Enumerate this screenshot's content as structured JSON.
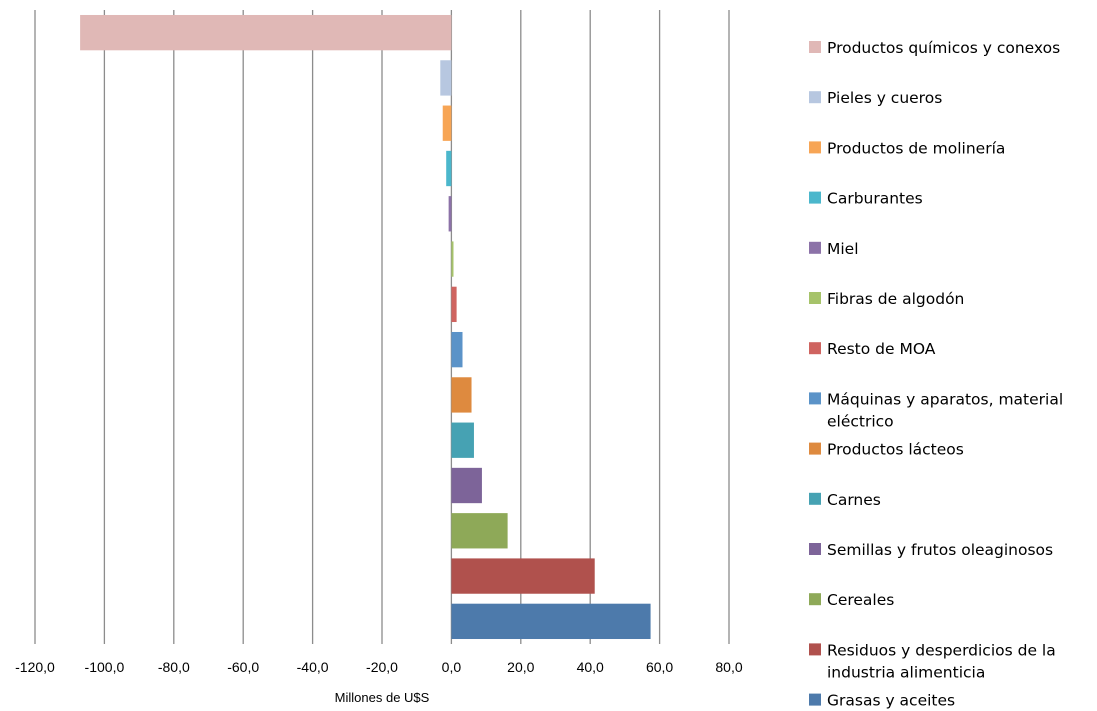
{
  "chart_data": {
    "type": "bar",
    "orientation": "horizontal",
    "xlabel": "Millones de U$S",
    "xlim": [
      -120,
      80
    ],
    "xticks": [
      -120,
      -100,
      -80,
      -60,
      -40,
      -20,
      0,
      20,
      40,
      60,
      80
    ],
    "tick_labels": [
      "-120,0",
      "-100,0",
      "-80,0",
      "-60,0",
      "-40,0",
      "-20,0",
      "0,0",
      "20,0",
      "40,0",
      "60,0",
      "80,0"
    ],
    "grid": "vertical",
    "legend_position": "right",
    "bars": [
      {
        "category": "Productos químicos y conexos",
        "value": -107.0,
        "color": "#e0b8b6"
      },
      {
        "category": "Pieles y cueros",
        "value": -3.2,
        "color": "#b7c7e0"
      },
      {
        "category": "Productos de molinería",
        "value": -2.5,
        "color": "#f7a555"
      },
      {
        "category": "Carburantes",
        "value": -1.5,
        "color": "#4bb7cc"
      },
      {
        "category": "Miel",
        "value": -0.8,
        "color": "#8c72a8"
      },
      {
        "category": "Fibras de algodón",
        "value": 0.6,
        "color": "#a6c36a"
      },
      {
        "category": "Resto de MOA",
        "value": 1.5,
        "color": "#cf6460"
      },
      {
        "category": "Máquinas y aparatos, material eléctrico",
        "value": 3.2,
        "color": "#5b93c8"
      },
      {
        "category": "Productos lácteos",
        "value": 5.8,
        "color": "#de8a3f"
      },
      {
        "category": "Carnes",
        "value": 6.5,
        "color": "#46a2b3"
      },
      {
        "category": "Semillas y frutos oleaginosos",
        "value": 8.8,
        "color": "#7d6499"
      },
      {
        "category": "Cereales",
        "value": 16.2,
        "color": "#8ea958"
      },
      {
        "category": "Residuos y desperdicios de la industria alimenticia",
        "value": 41.3,
        "color": "#b0514d"
      },
      {
        "category": "Grasas y aceites",
        "value": 57.4,
        "color": "#4d7aab"
      }
    ],
    "legend": [
      {
        "lines": [
          "Productos químicos y conexos"
        ],
        "color": "#e0b8b6"
      },
      {
        "lines": [
          "Pieles y cueros"
        ],
        "color": "#b7c7e0"
      },
      {
        "lines": [
          "Productos de molinería"
        ],
        "color": "#f7a555"
      },
      {
        "lines": [
          "Carburantes"
        ],
        "color": "#4bb7cc"
      },
      {
        "lines": [
          "Miel"
        ],
        "color": "#8c72a8"
      },
      {
        "lines": [
          "Fibras de algodón"
        ],
        "color": "#a6c36a"
      },
      {
        "lines": [
          "Resto de MOA"
        ],
        "color": "#cf6460"
      },
      {
        "lines": [
          "Máquinas y aparatos, material",
          "eléctrico"
        ],
        "color": "#5b93c8"
      },
      {
        "lines": [
          "Productos lácteos"
        ],
        "color": "#de8a3f"
      },
      {
        "lines": [
          "Carnes"
        ],
        "color": "#46a2b3"
      },
      {
        "lines": [
          "Semillas y frutos oleaginosos"
        ],
        "color": "#7d6499"
      },
      {
        "lines": [
          "Cereales"
        ],
        "color": "#8ea958"
      },
      {
        "lines": [
          "Residuos y desperdicios de la",
          "industria alimenticia"
        ],
        "color": "#b0514d"
      },
      {
        "lines": [
          "Grasas y aceites"
        ],
        "color": "#4d7aab"
      }
    ]
  }
}
